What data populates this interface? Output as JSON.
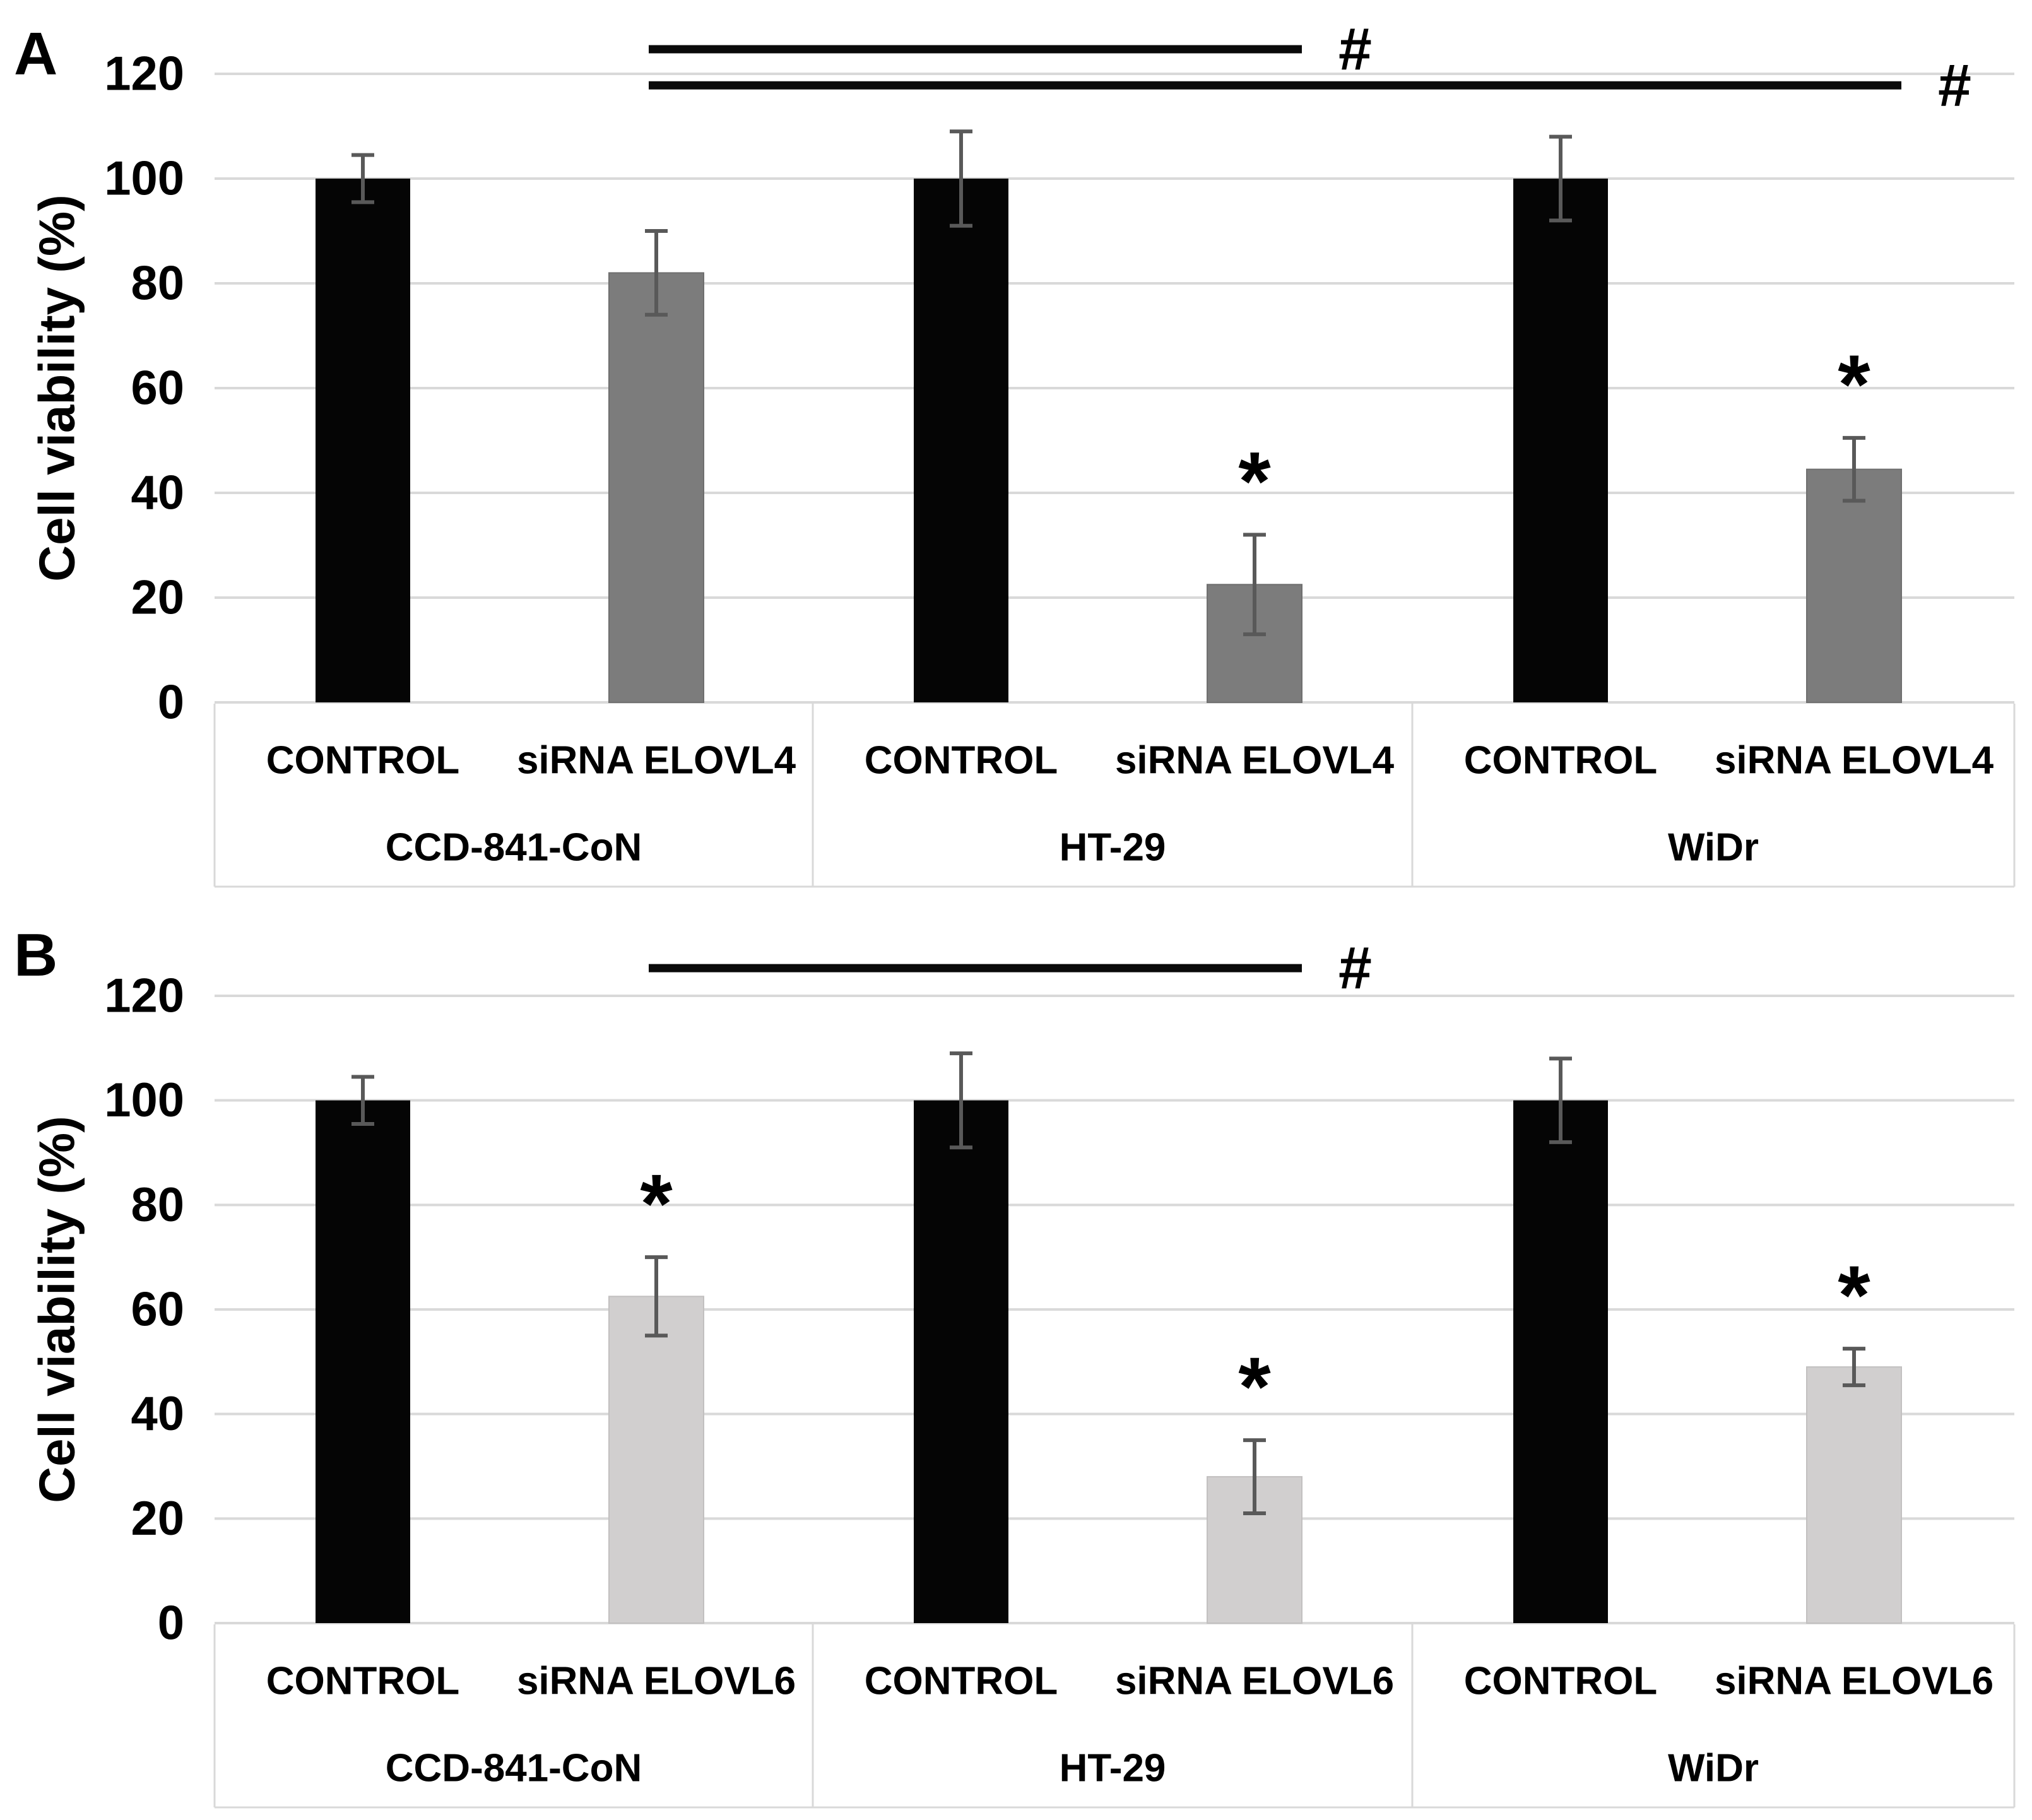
{
  "style": {
    "background": "#ffffff",
    "grid_color": "#d9d9d9",
    "axis_box_color": "#d9d9d9",
    "error_bar_color": "#595959",
    "sig_line_color": "#0a0a0a",
    "text_color": "#000000",
    "control_bar_color": "#050505",
    "sirna_elovl4_bar_color": "#7c7c7c",
    "sirna_elovl6_bar_color": "#d1cfcf"
  },
  "chart_data": [
    {
      "type": "bar",
      "panel_label": "A",
      "title": "",
      "xlabel": "",
      "ylabel": "Cell viability (%)",
      "ylim": [
        0,
        120
      ],
      "yticks": [
        0,
        20,
        40,
        60,
        80,
        100,
        120
      ],
      "grid": true,
      "legend_position": "none",
      "categories": [
        "CCD-841-CoN",
        "HT-29",
        "WiDr"
      ],
      "series": [
        {
          "name": "CONTROL",
          "color": "#050505",
          "stroke": "none",
          "values": [
            100,
            100,
            100
          ],
          "errors": [
            4.5,
            9,
            8
          ]
        },
        {
          "name": "siRNA ELOVL4",
          "color": "#7c7c7c",
          "stroke": "#6f6f6f",
          "values": [
            82,
            22.5,
            44.5
          ],
          "errors": [
            8,
            9.5,
            6
          ]
        }
      ],
      "significance_marks": [
        {
          "category": "HT-29",
          "series": "siRNA ELOVL4",
          "symbol": "*"
        },
        {
          "category": "WiDr",
          "series": "siRNA ELOVL4",
          "symbol": "*"
        }
      ],
      "significance_lines": [
        {
          "from_category": "CCD-841-CoN",
          "to_category": "HT-29",
          "series": "siRNA ELOVL4",
          "y_value": 124.7,
          "symbol": "#"
        },
        {
          "from_category": "CCD-841-CoN",
          "to_category": "WiDr",
          "series": "siRNA ELOVL4",
          "y_value": 117.8,
          "symbol": "#"
        }
      ]
    },
    {
      "type": "bar",
      "panel_label": "B",
      "title": "",
      "xlabel": "",
      "ylabel": "Cell viability (%)",
      "ylim": [
        0,
        120
      ],
      "yticks": [
        0,
        20,
        40,
        60,
        80,
        100,
        120
      ],
      "grid": true,
      "legend_position": "none",
      "categories": [
        "CCD-841-CoN",
        "HT-29",
        "WiDr"
      ],
      "series": [
        {
          "name": "CONTROL",
          "color": "#050505",
          "stroke": "none",
          "values": [
            100,
            100,
            100
          ],
          "errors": [
            4.5,
            9,
            8
          ]
        },
        {
          "name": "siRNA ELOVL6",
          "color": "#d1cfcf",
          "stroke": "#c2c0c0",
          "values": [
            62.5,
            28,
            49
          ],
          "errors": [
            7.5,
            7,
            3.5
          ]
        }
      ],
      "significance_marks": [
        {
          "category": "CCD-841-CoN",
          "series": "siRNA ELOVL6",
          "symbol": "*"
        },
        {
          "category": "HT-29",
          "series": "siRNA ELOVL6",
          "symbol": "*"
        },
        {
          "category": "WiDr",
          "series": "siRNA ELOVL6",
          "symbol": "*"
        }
      ],
      "significance_lines": [
        {
          "from_category": "CCD-841-CoN",
          "to_category": "HT-29",
          "series": "siRNA ELOVL6",
          "y_value": 125.3,
          "symbol": "#"
        }
      ]
    }
  ]
}
